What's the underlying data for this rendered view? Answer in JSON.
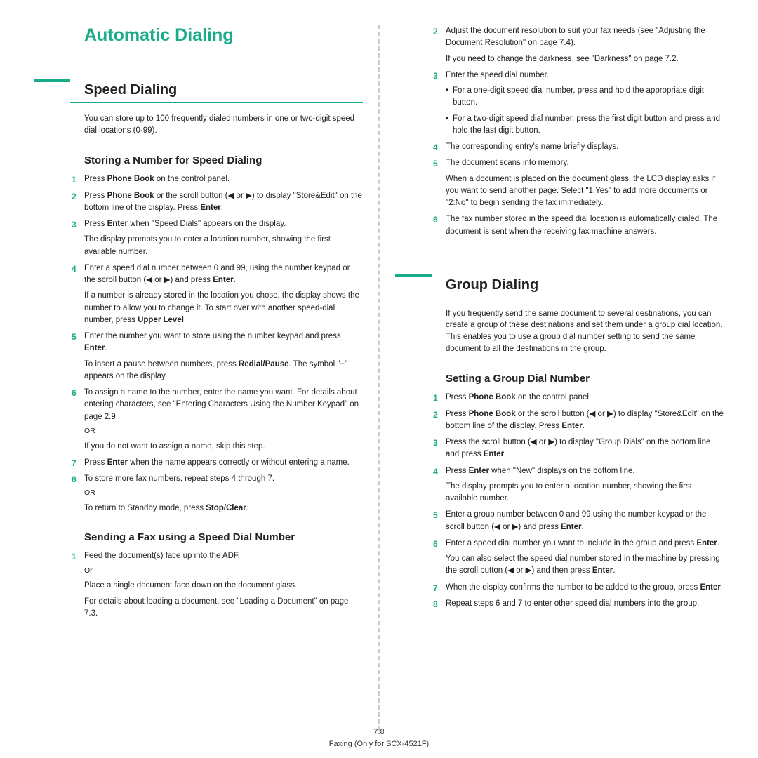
{
  "main_title": "Automatic Dialing",
  "section1": {
    "title": "Speed Dialing",
    "intro": "You can store up to 100 frequently dialed numbers in one or two-digit speed dial locations (0-99).",
    "sub1": {
      "title": "Storing a Number for Speed Dialing",
      "s1": "Press <b>Phone Book</b> on the control panel.",
      "s2": "Press <b>Phone Book</b> or the scroll button (◀ or ▶) to display \"Store&Edit\" on the bottom line of the display. Press <b>Enter</b>.",
      "s3": "Press <b>Enter</b> when \"Speed Dials\" appears on the display.",
      "s3b": "The display prompts you to enter a location number, showing the first available number.",
      "s4": "Enter a speed dial number between 0 and 99, using the number keypad or the scroll button (◀ or ▶) and press <b>Enter</b>.",
      "s4b": "If a number is already stored in the location you chose, the display shows the number to allow you to change it. To start over with another speed-dial number, press <b>Upper Level</b>.",
      "s5": "Enter the number you want to store using the number keypad and press <b>Enter</b>.",
      "s5b": "To insert a pause between numbers, press <b>Redial/Pause</b>. The symbol \"−\" appears on the display.",
      "s6": "To assign a name to the number, enter the name you want. For details about entering characters, see \"Entering Characters Using the Number Keypad\" on page 2.9.",
      "s6b": "OR",
      "s6c": "If you do not want to assign a name, skip this step.",
      "s7": "Press <b>Enter</b> when the name appears correctly or without entering a name.",
      "s8": "To store more fax numbers, repeat steps 4 through 7.",
      "s8b": "OR",
      "s8c": "To return to Standby mode, press <b>Stop/Clear</b>."
    },
    "sub2": {
      "title": "Sending a Fax using a Speed Dial Number",
      "s1": "Feed the document(s) face up into the ADF.",
      "s1b": "Or",
      "s1c": "Place a single document face down on the document glass.",
      "s1d": "For details about loading a document, see \"Loading a Document\" on page 7.3.",
      "s2": "Adjust the document resolution to suit your fax needs (see \"Adjusting the Document Resolution\" on page 7.4).",
      "s2b": "If you need to change the darkness, see \"Darkness\" on page 7.2.",
      "s3": "Enter the speed dial number.",
      "s3b": "For a one-digit speed dial number, press and hold the appropriate digit button.",
      "s3c": "For a two-digit speed dial number, press the first digit button and press and hold the last digit button.",
      "s4": "The corresponding entry's name briefly displays.",
      "s5": "The document scans into memory.",
      "s5b": "When a document is placed on the document glass, the LCD display asks if you want to send another page. Select \"1:Yes\" to add more documents or \"2:No\" to begin sending the fax immediately.",
      "s6": "The fax number stored in the speed dial location is automatically dialed. The document is sent when the receiving fax machine answers."
    }
  },
  "section2": {
    "title": "Group Dialing",
    "intro": "If you frequently send the same document to several destinations, you can create a group of these destinations and set them under a group dial location. This enables you to use a group dial number setting to send the same document to all the destinations in the group.",
    "sub1": {
      "title": "Setting a Group Dial Number",
      "s1": "Press <b>Phone Book</b> on the control panel.",
      "s2": "Press <b>Phone Book</b> or the scroll button (◀ or ▶) to display \"Store&Edit\" on the bottom line of the display. Press <b>Enter</b>.",
      "s3": "Press the scroll button (◀ or ▶) to display \"Group Dials\" on the bottom line and press <b>Enter</b>.",
      "s4": "Press <b>Enter</b> when \"New\" displays on the bottom line.",
      "s4b": "The display prompts you to enter a location number, showing the first available number.",
      "s5": "Enter a group number between 0 and 99 using the number keypad or the scroll button (◀ or ▶) and press <b>Enter</b>.",
      "s6": "Enter a speed dial number you want to include in the group and press <b>Enter</b>.",
      "s6b": "You can also select the speed dial number stored in the machine by pressing the scroll button (◀ or ▶) and then press <b>Enter</b>.",
      "s7": "When the display confirms the number to be added to the group, press <b>Enter</b>.",
      "s8": "Repeat steps 6 and 7 to enter other speed dial numbers into the group."
    }
  },
  "footer": {
    "page": "7.8",
    "note": "Faxing (Only for SCX-4521F)"
  }
}
